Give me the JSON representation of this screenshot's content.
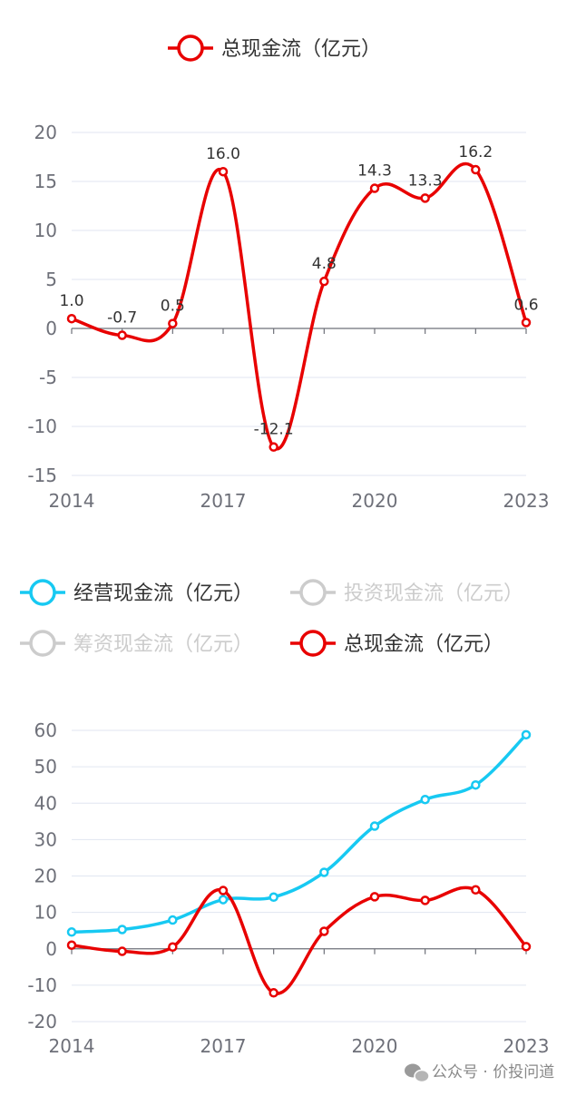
{
  "colors": {
    "operating": "#17c9f2",
    "total": "#e80000",
    "inactive": "#cccccc",
    "text": "#333333",
    "axis": "#6e7079",
    "grid": "#e0e6f1"
  },
  "chart_data": [
    {
      "type": "line",
      "smooth": true,
      "legend": [
        {
          "name": "总现金流（亿元）",
          "active": true
        }
      ],
      "x": [
        "2014",
        "2015",
        "2016",
        "2017",
        "2018",
        "2019",
        "2020",
        "2021",
        "2022",
        "2023"
      ],
      "xtick_labels": [
        "2014",
        "2017",
        "2020",
        "2023"
      ],
      "ylim": [
        -15,
        20
      ],
      "yticks": [
        -15,
        -10,
        -5,
        0,
        5,
        10,
        15,
        20
      ],
      "grid": true,
      "series": [
        {
          "name": "总现金流（亿元）",
          "values": [
            1.0,
            -0.7,
            0.5,
            16.0,
            -12.1,
            4.8,
            14.3,
            13.3,
            16.2,
            0.6
          ],
          "labels": [
            "1.0",
            "-0.7",
            "0.5",
            "16.0",
            "-12.1",
            "4.8",
            "14.3",
            "13.3",
            "16.2",
            "0.6"
          ]
        }
      ]
    },
    {
      "type": "line",
      "smooth": true,
      "legend": [
        {
          "name": "经营现金流（亿元）",
          "active": true
        },
        {
          "name": "投资现金流（亿元）",
          "active": false
        },
        {
          "name": "筹资现金流（亿元）",
          "active": false
        },
        {
          "name": "总现金流（亿元）",
          "active": true
        }
      ],
      "x": [
        "2014",
        "2015",
        "2016",
        "2017",
        "2018",
        "2019",
        "2020",
        "2021",
        "2022",
        "2023"
      ],
      "xtick_labels": [
        "2014",
        "2017",
        "2020",
        "2023"
      ],
      "ylim": [
        -20,
        60
      ],
      "yticks": [
        -20,
        -10,
        0,
        10,
        20,
        30,
        40,
        50,
        60
      ],
      "grid": true,
      "series": [
        {
          "name": "经营现金流（亿元）",
          "values": [
            4.6,
            5.3,
            7.9,
            13.5,
            14.2,
            21.0,
            33.7,
            41.0,
            45.0,
            58.8
          ]
        },
        {
          "name": "总现金流（亿元）",
          "values": [
            1.0,
            -0.7,
            0.5,
            16.0,
            -12.1,
            4.8,
            14.3,
            13.3,
            16.2,
            0.6
          ]
        }
      ]
    }
  ],
  "watermark": {
    "text": "公众号 · 价投问道",
    "icon": "wechat-icon"
  }
}
